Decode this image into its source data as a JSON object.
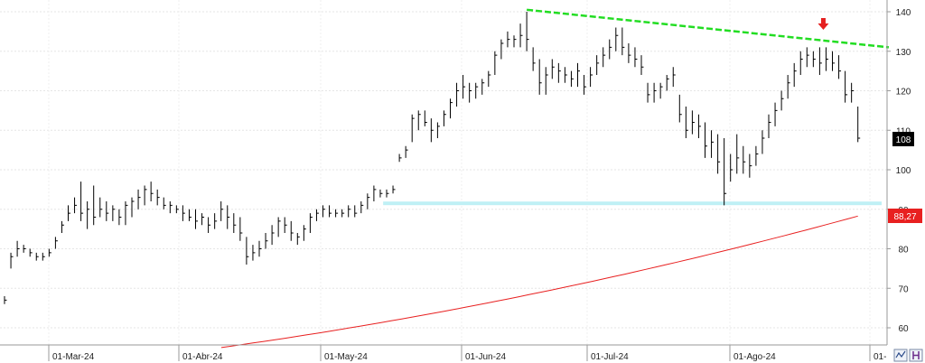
{
  "chart_data": {
    "type": "ohlc",
    "y_ticks": [
      "140",
      "130",
      "120",
      "110",
      "100",
      "90",
      "80",
      "70",
      "60"
    ],
    "y_tick_values": [
      140,
      130,
      120,
      110,
      100,
      90,
      80,
      70,
      60
    ],
    "x_labels": [
      "01-Mar-24",
      "01-Abr-24",
      "01-May-24",
      "01-Jun-24",
      "01-Jul-24",
      "01-Ago-24",
      "01-"
    ],
    "ylim": [
      55,
      143
    ],
    "price_badge": "108",
    "ma_badge": "88,27",
    "bars": [
      {
        "h": 68,
        "l": 66,
        "c": 67
      },
      {
        "h": 79,
        "l": 75,
        "c": 78
      },
      {
        "h": 82,
        "l": 78,
        "c": 80
      },
      {
        "h": 81,
        "l": 79,
        "c": 80
      },
      {
        "h": 80,
        "l": 78,
        "c": 79
      },
      {
        "h": 79,
        "l": 77,
        "c": 78
      },
      {
        "h": 79,
        "l": 77,
        "c": 78
      },
      {
        "h": 80,
        "l": 78,
        "c": 79
      },
      {
        "h": 83,
        "l": 80,
        "c": 82
      },
      {
        "h": 87,
        "l": 84,
        "c": 86
      },
      {
        "h": 91,
        "l": 87,
        "c": 89
      },
      {
        "h": 93,
        "l": 89,
        "c": 91
      },
      {
        "h": 97,
        "l": 87,
        "c": 89
      },
      {
        "h": 92,
        "l": 85,
        "c": 90
      },
      {
        "h": 96,
        "l": 86,
        "c": 88
      },
      {
        "h": 93,
        "l": 88,
        "c": 90
      },
      {
        "h": 92,
        "l": 87,
        "c": 89
      },
      {
        "h": 91,
        "l": 87,
        "c": 90
      },
      {
        "h": 90,
        "l": 86,
        "c": 88
      },
      {
        "h": 92,
        "l": 86,
        "c": 91
      },
      {
        "h": 93,
        "l": 88,
        "c": 92
      },
      {
        "h": 95,
        "l": 90,
        "c": 93
      },
      {
        "h": 96,
        "l": 91,
        "c": 95
      },
      {
        "h": 97,
        "l": 92,
        "c": 94
      },
      {
        "h": 95,
        "l": 91,
        "c": 93
      },
      {
        "h": 93,
        "l": 90,
        "c": 91
      },
      {
        "h": 92,
        "l": 89,
        "c": 91
      },
      {
        "h": 91,
        "l": 89,
        "c": 90
      },
      {
        "h": 91,
        "l": 87,
        "c": 89
      },
      {
        "h": 90,
        "l": 87,
        "c": 88
      },
      {
        "h": 90,
        "l": 85,
        "c": 87
      },
      {
        "h": 89,
        "l": 86,
        "c": 88
      },
      {
        "h": 88,
        "l": 84,
        "c": 86
      },
      {
        "h": 89,
        "l": 85,
        "c": 87
      },
      {
        "h": 92,
        "l": 87,
        "c": 90
      },
      {
        "h": 91,
        "l": 85,
        "c": 88
      },
      {
        "h": 89,
        "l": 84,
        "c": 86
      },
      {
        "h": 88,
        "l": 82,
        "c": 84
      },
      {
        "h": 83,
        "l": 76,
        "c": 78
      },
      {
        "h": 81,
        "l": 77,
        "c": 79
      },
      {
        "h": 82,
        "l": 78,
        "c": 80
      },
      {
        "h": 84,
        "l": 80,
        "c": 82
      },
      {
        "h": 86,
        "l": 81,
        "c": 84
      },
      {
        "h": 88,
        "l": 83,
        "c": 87
      },
      {
        "h": 88,
        "l": 84,
        "c": 86
      },
      {
        "h": 87,
        "l": 82,
        "c": 84
      },
      {
        "h": 84,
        "l": 81,
        "c": 83
      },
      {
        "h": 86,
        "l": 82,
        "c": 85
      },
      {
        "h": 89,
        "l": 84,
        "c": 88
      },
      {
        "h": 90,
        "l": 87,
        "c": 89
      },
      {
        "h": 91,
        "l": 88,
        "c": 90
      },
      {
        "h": 91,
        "l": 88,
        "c": 89
      },
      {
        "h": 90,
        "l": 88,
        "c": 89
      },
      {
        "h": 90,
        "l": 88,
        "c": 89
      },
      {
        "h": 91,
        "l": 88,
        "c": 90
      },
      {
        "h": 91,
        "l": 88,
        "c": 89
      },
      {
        "h": 92,
        "l": 89,
        "c": 91
      },
      {
        "h": 94,
        "l": 90,
        "c": 93
      },
      {
        "h": 96,
        "l": 92,
        "c": 95
      },
      {
        "h": 95,
        "l": 93,
        "c": 94
      },
      {
        "h": 95,
        "l": 93,
        "c": 94
      },
      {
        "h": 96,
        "l": 94,
        "c": 95
      },
      {
        "h": 104,
        "l": 102,
        "c": 103
      },
      {
        "h": 106,
        "l": 103,
        "c": 105
      },
      {
        "h": 114,
        "l": 107,
        "c": 113
      },
      {
        "h": 115,
        "l": 110,
        "c": 114
      },
      {
        "h": 115,
        "l": 111,
        "c": 112
      },
      {
        "h": 113,
        "l": 107,
        "c": 110
      },
      {
        "h": 112,
        "l": 108,
        "c": 111
      },
      {
        "h": 115,
        "l": 111,
        "c": 114
      },
      {
        "h": 118,
        "l": 113,
        "c": 117
      },
      {
        "h": 122,
        "l": 116,
        "c": 120
      },
      {
        "h": 124,
        "l": 118,
        "c": 121
      },
      {
        "h": 122,
        "l": 117,
        "c": 120
      },
      {
        "h": 122,
        "l": 118,
        "c": 121
      },
      {
        "h": 123,
        "l": 119,
        "c": 122
      },
      {
        "h": 125,
        "l": 121,
        "c": 124
      },
      {
        "h": 130,
        "l": 124,
        "c": 129
      },
      {
        "h": 133,
        "l": 128,
        "c": 132
      },
      {
        "h": 135,
        "l": 131,
        "c": 133
      },
      {
        "h": 134,
        "l": 131,
        "c": 133
      },
      {
        "h": 137,
        "l": 131,
        "c": 134
      },
      {
        "h": 140,
        "l": 130,
        "c": 133
      },
      {
        "h": 131,
        "l": 125,
        "c": 127
      },
      {
        "h": 128,
        "l": 119,
        "c": 122
      },
      {
        "h": 126,
        "l": 119,
        "c": 124
      },
      {
        "h": 128,
        "l": 123,
        "c": 126
      },
      {
        "h": 127,
        "l": 122,
        "c": 125
      },
      {
        "h": 126,
        "l": 122,
        "c": 124
      },
      {
        "h": 125,
        "l": 121,
        "c": 123
      },
      {
        "h": 127,
        "l": 121,
        "c": 125
      },
      {
        "h": 124,
        "l": 119,
        "c": 121
      },
      {
        "h": 126,
        "l": 121,
        "c": 124
      },
      {
        "h": 129,
        "l": 124,
        "c": 127
      },
      {
        "h": 131,
        "l": 126,
        "c": 129
      },
      {
        "h": 133,
        "l": 128,
        "c": 131
      },
      {
        "h": 136,
        "l": 130,
        "c": 134
      },
      {
        "h": 136,
        "l": 129,
        "c": 131
      },
      {
        "h": 132,
        "l": 127,
        "c": 129
      },
      {
        "h": 131,
        "l": 126,
        "c": 128
      },
      {
        "h": 129,
        "l": 124,
        "c": 126
      },
      {
        "h": 122,
        "l": 117,
        "c": 119
      },
      {
        "h": 122,
        "l": 117,
        "c": 120
      },
      {
        "h": 122,
        "l": 118,
        "c": 121
      },
      {
        "h": 124,
        "l": 120,
        "c": 123
      },
      {
        "h": 126,
        "l": 121,
        "c": 124
      },
      {
        "h": 119,
        "l": 112,
        "c": 114
      },
      {
        "h": 116,
        "l": 108,
        "c": 110
      },
      {
        "h": 115,
        "l": 109,
        "c": 112
      },
      {
        "h": 114,
        "l": 108,
        "c": 111
      },
      {
        "h": 112,
        "l": 103,
        "c": 106
      },
      {
        "h": 110,
        "l": 103,
        "c": 107
      },
      {
        "h": 109,
        "l": 99,
        "c": 102
      },
      {
        "h": 108,
        "l": 91,
        "c": 94
      },
      {
        "h": 104,
        "l": 97,
        "c": 100
      },
      {
        "h": 109,
        "l": 99,
        "c": 103
      },
      {
        "h": 106,
        "l": 99,
        "c": 102
      },
      {
        "h": 104,
        "l": 98,
        "c": 101
      },
      {
        "h": 106,
        "l": 101,
        "c": 104
      },
      {
        "h": 110,
        "l": 104,
        "c": 108
      },
      {
        "h": 114,
        "l": 108,
        "c": 112
      },
      {
        "h": 117,
        "l": 111,
        "c": 115
      },
      {
        "h": 120,
        "l": 115,
        "c": 118
      },
      {
        "h": 124,
        "l": 118,
        "c": 122
      },
      {
        "h": 127,
        "l": 121,
        "c": 125
      },
      {
        "h": 130,
        "l": 124,
        "c": 128
      },
      {
        "h": 131,
        "l": 126,
        "c": 129
      },
      {
        "h": 130,
        "l": 126,
        "c": 128
      },
      {
        "h": 131,
        "l": 124,
        "c": 127
      },
      {
        "h": 131,
        "l": 125,
        "c": 128
      },
      {
        "h": 130,
        "l": 125,
        "c": 127
      },
      {
        "h": 129,
        "l": 123,
        "c": 125
      },
      {
        "h": 125,
        "l": 117,
        "c": 119
      },
      {
        "h": 122,
        "l": 117,
        "c": 120
      },
      {
        "h": 116,
        "l": 107,
        "c": 108
      }
    ],
    "moving_average": {
      "color": "#e82020",
      "from": 55,
      "to": 88.27
    },
    "resistance_line": {
      "color": "#22dd22",
      "start_bar": 82,
      "start_value": 140.5,
      "end_bar": 138,
      "end_value": 131
    },
    "support_band": {
      "color": "#bff0f5",
      "value": 91.5,
      "start_bar": 63
    },
    "marker_arrow": {
      "color": "#e52020",
      "bar": 129
    }
  }
}
